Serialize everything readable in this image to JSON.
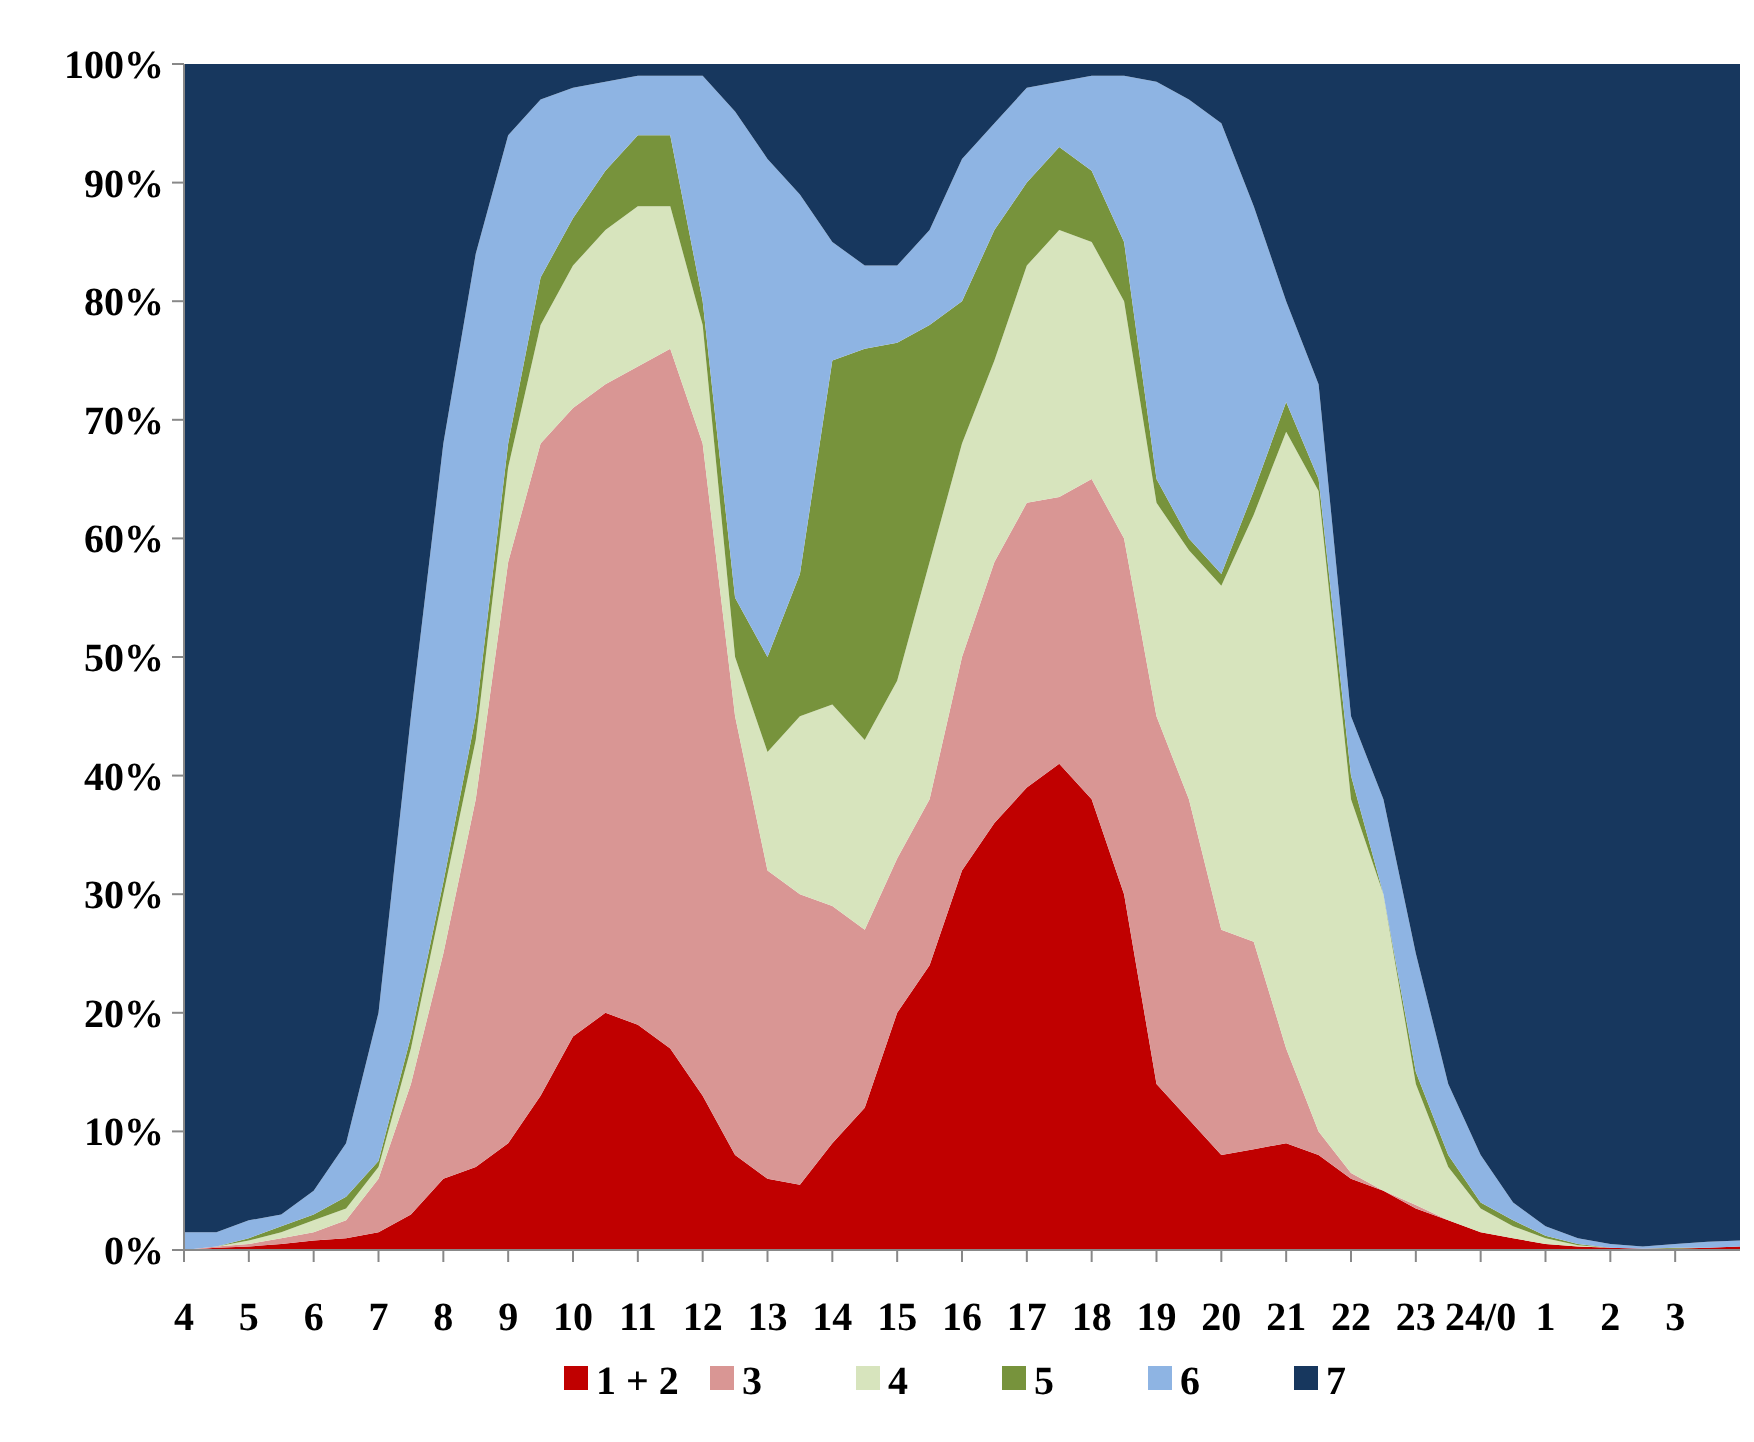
{
  "chart_data": {
    "type": "area",
    "stacked": true,
    "legend": "bottom",
    "grid": false,
    "categories": [
      "4",
      null,
      "5",
      null,
      "6",
      null,
      "7",
      null,
      "8",
      null,
      "9",
      null,
      "10",
      null,
      "11",
      null,
      "12",
      null,
      "13",
      null,
      "14",
      null,
      "15",
      null,
      "16",
      null,
      "17",
      null,
      "18",
      null,
      "19",
      null,
      "20",
      null,
      "21",
      null,
      "22",
      null,
      "23",
      null,
      "24/0",
      null,
      "1",
      null,
      "2",
      null,
      "3",
      null,
      null
    ],
    "ylim": [
      0,
      100
    ],
    "yticks": [
      {
        "value": 0,
        "label": "0%"
      },
      {
        "value": 10,
        "label": "10%"
      },
      {
        "value": 20,
        "label": "20%"
      },
      {
        "value": 30,
        "label": "30%"
      },
      {
        "value": 40,
        "label": "40%"
      },
      {
        "value": 50,
        "label": "50%"
      },
      {
        "value": 60,
        "label": "60%"
      },
      {
        "value": 70,
        "label": "70%"
      },
      {
        "value": 80,
        "label": "80%"
      },
      {
        "value": 90,
        "label": "90%"
      },
      {
        "value": 100,
        "label": "100%"
      }
    ],
    "series": [
      {
        "name": "1 + 2",
        "color": "#c00000",
        "values": [
          0,
          0.2,
          0.3,
          0.5,
          0.8,
          1,
          1.5,
          3,
          6,
          7,
          9,
          13,
          18,
          20,
          19,
          17,
          13,
          8,
          6,
          5.5,
          9,
          12,
          20,
          24,
          32,
          36,
          39,
          41,
          38,
          30,
          14,
          11,
          8,
          8.5,
          9,
          8,
          6,
          5,
          3.5,
          2.5,
          1.5,
          1,
          0.5,
          0.3,
          0.2,
          0.1,
          0.1,
          0.2,
          0.3
        ]
      },
      {
        "name": "3",
        "color": "#d99694",
        "values": [
          0,
          0.1,
          0.2,
          0.5,
          0.7,
          1.5,
          4.5,
          11,
          19,
          31,
          49,
          55,
          53,
          53,
          55.5,
          59,
          55,
          37,
          26,
          24.5,
          20,
          15,
          13,
          14,
          18,
          22,
          24,
          22.5,
          27,
          30,
          31,
          27,
          19,
          17.5,
          8,
          2,
          0.5,
          0,
          0.3,
          0,
          0,
          0,
          0,
          0,
          0,
          0,
          0,
          0,
          0
        ]
      },
      {
        "name": "4",
        "color": "#d7e4bd",
        "values": [
          0,
          0,
          0.3,
          0.5,
          1,
          1,
          1,
          3,
          5,
          5,
          8,
          10,
          12,
          13,
          13.5,
          12,
          10,
          5,
          10,
          15,
          17,
          16,
          15,
          20,
          18,
          17,
          20,
          22.5,
          20,
          20,
          18,
          21,
          29,
          36,
          52,
          54,
          31.5,
          25,
          10.2,
          4.5,
          2,
          1,
          0.5,
          0.1,
          0,
          0,
          0,
          0,
          0
        ]
      },
      {
        "name": "5",
        "color": "#77933c",
        "values": [
          0,
          0,
          0.2,
          0.5,
          0.5,
          1,
          0.5,
          1,
          1,
          2,
          2,
          4,
          4,
          5,
          6,
          6,
          2,
          5,
          8,
          12,
          29,
          33,
          28.5,
          20,
          12,
          11,
          7,
          7,
          6,
          5,
          2,
          1,
          1,
          2,
          2.5,
          1,
          2,
          0,
          1,
          1,
          0.5,
          0.5,
          0.2,
          0.1,
          0,
          0,
          0.1,
          0,
          0
        ]
      },
      {
        "name": "6",
        "color": "#8eb4e3",
        "values": [
          1.5,
          1.2,
          1.5,
          1,
          2,
          4.5,
          12.5,
          27,
          37,
          39,
          26,
          15,
          11,
          7.5,
          5,
          5,
          19,
          41,
          42,
          32,
          10,
          7,
          6.5,
          8,
          12,
          9,
          8,
          5.5,
          8,
          14,
          33.5,
          37,
          38,
          24,
          8.5,
          8,
          5,
          8,
          10,
          6,
          4,
          1.5,
          0.8,
          0.5,
          0.3,
          0.2,
          0.3,
          0.5,
          0.5
        ]
      },
      {
        "name": "7",
        "color": "#17375e",
        "values": [
          98.5,
          98.5,
          97.5,
          97,
          95,
          91,
          80,
          55,
          32,
          16,
          6,
          3,
          2,
          1.5,
          1,
          1,
          1,
          4,
          8,
          11,
          15,
          17,
          17,
          14,
          8,
          5,
          2,
          1.5,
          1,
          1,
          1.5,
          3,
          5,
          12,
          20,
          27,
          55,
          62,
          75,
          86,
          92,
          96,
          98,
          99,
          99.5,
          99.7,
          99.5,
          99.3,
          99.2
        ]
      }
    ]
  }
}
